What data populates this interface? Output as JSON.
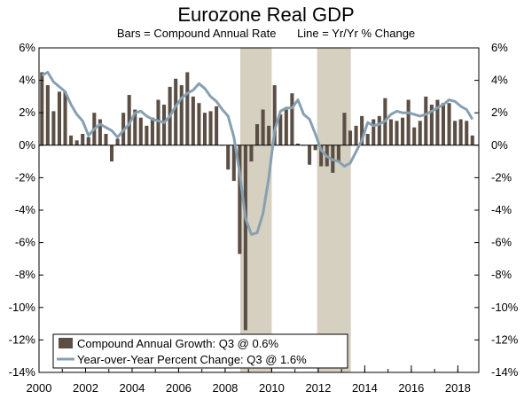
{
  "chart_data": {
    "type": "bar",
    "title": "Eurozone Real GDP",
    "subtitle_left": "Bars = Compound Annual Rate",
    "subtitle_right": "Line = Yr/Yr % Change",
    "ylim": [
      -14,
      6
    ],
    "y_ticks": [
      "6%",
      "4%",
      "2%",
      "0%",
      "-2%",
      "-4%",
      "-6%",
      "-8%",
      "-10%",
      "-12%",
      "-14%"
    ],
    "y_tick_values": [
      6,
      4,
      2,
      0,
      -2,
      -4,
      -6,
      -8,
      -10,
      -12,
      -14
    ],
    "x_ticks": [
      "2000",
      "2002",
      "2004",
      "2006",
      "2008",
      "2010",
      "2012",
      "2014",
      "2016",
      "2018"
    ],
    "x_tick_values": [
      2000,
      2002,
      2004,
      2006,
      2008,
      2010,
      2012,
      2014,
      2016,
      2018
    ],
    "x_range": [
      2000,
      2018.9
    ],
    "recession_shading": [
      [
        2008.65,
        2010.0
      ],
      [
        2011.95,
        2013.4
      ]
    ],
    "colors": {
      "bars": "#5b4f45",
      "line": "#87a0b1",
      "shading": "#d6d0c1"
    },
    "legend": {
      "placement": "bottom-left",
      "bars_label": "Compound Annual Growth: Q3 @ 0.6%",
      "line_label": "Year-over-Year Percent Change: Q3 @ 1.6%"
    },
    "series": [
      {
        "name": "Compound Annual Growth",
        "kind": "bar",
        "x": [
          2000.0,
          2000.25,
          2000.5,
          2000.75,
          2001.0,
          2001.25,
          2001.5,
          2001.75,
          2002.0,
          2002.25,
          2002.5,
          2002.75,
          2003.0,
          2003.25,
          2003.5,
          2003.75,
          2004.0,
          2004.25,
          2004.5,
          2004.75,
          2005.0,
          2005.25,
          2005.5,
          2005.75,
          2006.0,
          2006.25,
          2006.5,
          2006.75,
          2007.0,
          2007.25,
          2007.5,
          2007.75,
          2008.0,
          2008.25,
          2008.5,
          2008.75,
          2009.0,
          2009.25,
          2009.5,
          2009.75,
          2010.0,
          2010.25,
          2010.5,
          2010.75,
          2011.0,
          2011.25,
          2011.5,
          2011.75,
          2012.0,
          2012.25,
          2012.5,
          2012.75,
          2013.0,
          2013.25,
          2013.5,
          2013.75,
          2014.0,
          2014.25,
          2014.5,
          2014.75,
          2015.0,
          2015.25,
          2015.5,
          2015.75,
          2016.0,
          2016.25,
          2016.5,
          2016.75,
          2017.0,
          2017.25,
          2017.5,
          2017.75,
          2018.0,
          2018.25,
          2018.5
        ],
        "values": [
          4.5,
          3.7,
          2.1,
          3.3,
          3.3,
          0.6,
          0.3,
          0.7,
          0.5,
          2.0,
          1.6,
          0.7,
          -1.0,
          0.4,
          2.0,
          3.1,
          2.2,
          1.7,
          1.2,
          1.7,
          2.8,
          2.5,
          3.6,
          4.1,
          3.7,
          4.5,
          3.0,
          2.6,
          2.0,
          2.1,
          2.4,
          0.0,
          -1.5,
          -2.2,
          -6.7,
          -11.4,
          -1.0,
          1.3,
          2.2,
          1.2,
          3.7,
          1.9,
          2.2,
          3.2,
          0.1,
          0.0,
          -1.2,
          -0.3,
          -1.3,
          -1.3,
          -1.7,
          -1.0,
          2.0,
          0.9,
          1.2,
          1.8,
          0.7,
          1.6,
          1.8,
          2.9,
          1.6,
          1.5,
          1.7,
          2.8,
          1.1,
          1.5,
          3.0,
          2.5,
          2.8,
          2.6,
          2.6,
          1.5,
          1.6,
          1.5,
          0.6
        ]
      },
      {
        "name": "Year-over-Year Percent Change",
        "kind": "line",
        "x": [
          2000.0,
          2000.25,
          2000.5,
          2000.75,
          2001.0,
          2001.25,
          2001.5,
          2001.75,
          2002.0,
          2002.25,
          2002.5,
          2002.75,
          2003.0,
          2003.25,
          2003.5,
          2003.75,
          2004.0,
          2004.25,
          2004.5,
          2004.75,
          2005.0,
          2005.25,
          2005.5,
          2005.75,
          2006.0,
          2006.25,
          2006.5,
          2006.75,
          2007.0,
          2007.25,
          2007.5,
          2007.75,
          2008.0,
          2008.25,
          2008.5,
          2008.75,
          2009.0,
          2009.25,
          2009.5,
          2009.75,
          2010.0,
          2010.25,
          2010.5,
          2010.75,
          2011.0,
          2011.25,
          2011.5,
          2011.75,
          2012.0,
          2012.25,
          2012.5,
          2012.75,
          2013.0,
          2013.25,
          2013.5,
          2013.75,
          2014.0,
          2014.25,
          2014.5,
          2014.75,
          2015.0,
          2015.25,
          2015.5,
          2015.75,
          2016.0,
          2016.25,
          2016.5,
          2016.75,
          2017.0,
          2017.25,
          2017.5,
          2017.75,
          2018.0,
          2018.25,
          2018.5
        ],
        "values": [
          4.3,
          4.5,
          3.9,
          3.6,
          3.3,
          2.5,
          1.9,
          1.5,
          0.6,
          1.0,
          1.3,
          1.1,
          0.9,
          0.5,
          0.9,
          1.3,
          2.0,
          2.1,
          1.8,
          1.6,
          1.5,
          1.4,
          1.8,
          2.4,
          2.9,
          3.2,
          3.4,
          3.8,
          3.5,
          3.0,
          2.7,
          2.2,
          1.8,
          0.5,
          -1.7,
          -4.5,
          -5.5,
          -5.4,
          -4.2,
          -2.0,
          0.9,
          2.1,
          2.3,
          2.3,
          2.8,
          1.9,
          1.6,
          0.7,
          -0.3,
          -0.7,
          -0.9,
          -1.0,
          -1.3,
          -1.1,
          -0.4,
          0.3,
          1.4,
          1.2,
          1.3,
          1.5,
          1.9,
          2.1,
          2.0,
          2.0,
          1.9,
          1.8,
          1.9,
          2.1,
          2.3,
          2.5,
          2.8,
          2.7,
          2.4,
          2.2,
          1.6
        ]
      }
    ]
  }
}
